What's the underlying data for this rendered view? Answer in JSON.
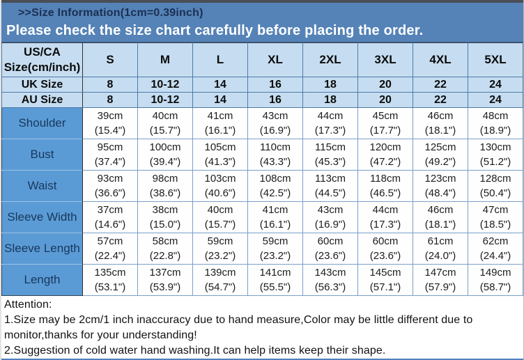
{
  "banner": {
    "title": ">>Size Information(1cm=0.39inch)",
    "warning": "Please check the size chart carefully before placing the order."
  },
  "colors": {
    "banner_blue": "#5583b7",
    "header_light_blue": "#c6ddf1",
    "label_blue": "#5b9bd5",
    "label_text_navy": "#17375e",
    "bottom_bar_blue": "#4f81bd"
  },
  "table": {
    "corner_lines": [
      "US/CA",
      "Size(cm/inch)"
    ],
    "size_headers": [
      "S",
      "M",
      "L",
      "XL",
      "2XL",
      "3XL",
      "4XL",
      "5XL"
    ],
    "size_rows": [
      {
        "label": "UK Size",
        "values": [
          "8",
          "10-12",
          "14",
          "16",
          "18",
          "20",
          "22",
          "24"
        ]
      },
      {
        "label": "AU Size",
        "values": [
          "8",
          "10-12",
          "14",
          "16",
          "18",
          "20",
          "22",
          "24"
        ]
      }
    ],
    "measure_rows": [
      {
        "label": "Shoulder",
        "cm": [
          "39cm",
          "40cm",
          "41cm",
          "43cm",
          "44cm",
          "45cm",
          "46cm",
          "48cm"
        ],
        "inch": [
          "(15.4\")",
          "(15.7\")",
          "(16.1\")",
          "(16.9\")",
          "(17.3\")",
          "(17.7\")",
          "(18.1\")",
          "(18.9\")"
        ]
      },
      {
        "label": "Bust",
        "cm": [
          "95cm",
          "100cm",
          "105cm",
          "110cm",
          "115cm",
          "120cm",
          "125cm",
          "130cm"
        ],
        "inch": [
          "(37.4\")",
          "(39.4\")",
          "(41.3\")",
          "(43.3\")",
          "(45.3\")",
          "(47.2\")",
          "(49.2\")",
          "(51.2\")"
        ]
      },
      {
        "label": "Waist",
        "cm": [
          "93cm",
          "98cm",
          "103cm",
          "108cm",
          "113cm",
          "118cm",
          "123cm",
          "128cm"
        ],
        "inch": [
          "(36.6\")",
          "(38.6\")",
          "(40.6\")",
          "(42.5\")",
          "(44.5\")",
          "(46.5\")",
          "(48.4\")",
          "(50.4\")"
        ]
      },
      {
        "label": "Sleeve Width",
        "cm": [
          "37cm",
          "38cm",
          "40cm",
          "41cm",
          "43cm",
          "44cm",
          "46cm",
          "47cm"
        ],
        "inch": [
          "(14.6\")",
          "(15.0\")",
          "(15.7\")",
          "(16.1\")",
          "(16.9\")",
          "(17.3\")",
          "(18.1\")",
          "(18.5\")"
        ]
      },
      {
        "label": "Sleeve Length",
        "cm": [
          "57cm",
          "58cm",
          "59cm",
          "59cm",
          "60cm",
          "60cm",
          "61cm",
          "62cm"
        ],
        "inch": [
          "(22.4\")",
          "(22.8\")",
          "(23.2\")",
          "(23.2\")",
          "(23.6\")",
          "(23.6\")",
          "(24.0\")",
          "(24.4\")"
        ]
      },
      {
        "label": "Length",
        "cm": [
          "135cm",
          "137cm",
          "139cm",
          "141cm",
          "143cm",
          "145cm",
          "147cm",
          "149cm"
        ],
        "inch": [
          "(53.1\")",
          "(53.9\")",
          "(54.7\")",
          "(55.5\")",
          "(56.3\")",
          "(57.1\")",
          "(57.9\")",
          "(58.7\")"
        ]
      }
    ]
  },
  "attention": {
    "title": "Attention:",
    "notes": [
      "1.Size may be 2cm/1 inch inaccuracy due to hand measure,Color may be little different due to monitor,thanks for your understanding!",
      "2.Suggestion of cold water hand washing.It can help items keep their shape."
    ]
  }
}
